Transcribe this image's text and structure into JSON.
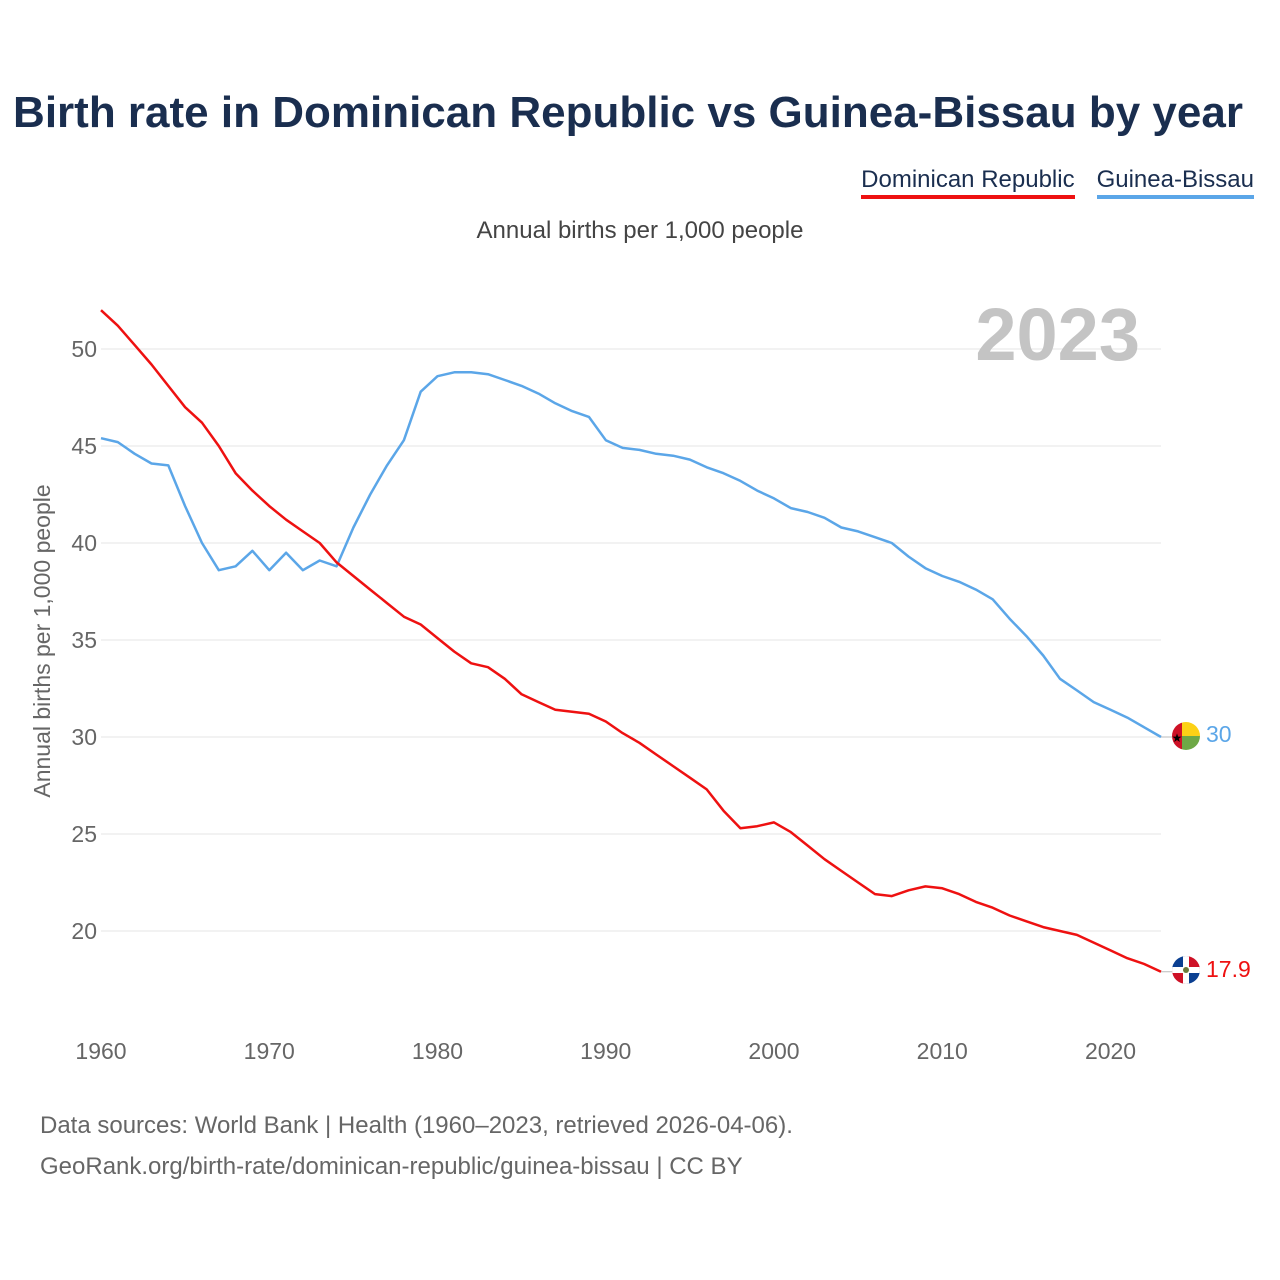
{
  "title": "Birth rate in Dominican Republic vs Guinea-Bissau by year",
  "subtitle": "Annual births per 1,000 people",
  "footer": {
    "line1": "Data sources: World Bank | Health (1960–2023, retrieved 2026-04-06).",
    "line2": "GeoRank.org/birth-rate/dominican-republic/guinea-bissau | CC BY"
  },
  "colors": {
    "dominican": "#ee1111",
    "guinea": "#5ba6e8",
    "grid": "#e6e6e6",
    "year": "#c4c4c4"
  },
  "chart_data": {
    "type": "line",
    "title": "Birth rate in Dominican Republic vs Guinea-Bissau by year",
    "ylabel": "Annual births per 1,000 people",
    "xlabel": "",
    "year_label": "2023",
    "xlim": [
      1960,
      2023
    ],
    "ylim": [
      16,
      53
    ],
    "x_ticks": [
      "1960",
      "1970",
      "1980",
      "1990",
      "2000",
      "2010",
      "2020"
    ],
    "y_ticks": [
      "20",
      "25",
      "30",
      "35",
      "40",
      "45",
      "50"
    ],
    "x": [
      1960,
      1961,
      1962,
      1963,
      1964,
      1965,
      1966,
      1967,
      1968,
      1969,
      1970,
      1971,
      1972,
      1973,
      1974,
      1975,
      1976,
      1977,
      1978,
      1979,
      1980,
      1981,
      1982,
      1983,
      1984,
      1985,
      1986,
      1987,
      1988,
      1989,
      1990,
      1991,
      1992,
      1993,
      1994,
      1995,
      1996,
      1997,
      1998,
      1999,
      2000,
      2001,
      2002,
      2003,
      2004,
      2005,
      2006,
      2007,
      2008,
      2009,
      2010,
      2011,
      2012,
      2013,
      2014,
      2015,
      2016,
      2017,
      2018,
      2019,
      2020,
      2021,
      2022,
      2023
    ],
    "series": [
      {
        "name": "Dominican Republic",
        "end_label": "17.9",
        "values": [
          52.0,
          51.2,
          50.2,
          49.2,
          48.1,
          47.0,
          46.2,
          45.0,
          43.6,
          42.7,
          41.9,
          41.2,
          40.6,
          40.0,
          39.0,
          38.3,
          37.6,
          36.9,
          36.2,
          35.8,
          35.1,
          34.4,
          33.8,
          33.6,
          33.0,
          32.2,
          31.8,
          31.4,
          31.3,
          31.2,
          30.8,
          30.2,
          29.7,
          29.1,
          28.5,
          27.9,
          27.3,
          26.2,
          25.3,
          25.4,
          25.6,
          25.1,
          24.4,
          23.7,
          23.1,
          22.5,
          21.9,
          21.8,
          22.1,
          22.3,
          22.2,
          21.9,
          21.5,
          21.2,
          20.8,
          20.5,
          20.2,
          20.0,
          19.8,
          19.4,
          19.0,
          18.6,
          18.3,
          17.9
        ]
      },
      {
        "name": "Guinea-Bissau",
        "end_label": "30",
        "values": [
          45.4,
          45.2,
          44.6,
          44.1,
          44.0,
          41.9,
          40.0,
          38.6,
          38.8,
          39.6,
          38.6,
          39.5,
          38.6,
          39.1,
          38.8,
          40.8,
          42.5,
          44.0,
          45.3,
          47.8,
          48.6,
          48.8,
          48.8,
          48.7,
          48.4,
          48.1,
          47.7,
          47.2,
          46.8,
          46.5,
          45.3,
          44.9,
          44.8,
          44.6,
          44.5,
          44.3,
          43.9,
          43.6,
          43.2,
          42.7,
          42.3,
          41.8,
          41.6,
          41.3,
          40.8,
          40.6,
          40.3,
          40.0,
          39.3,
          38.7,
          38.3,
          38.0,
          37.6,
          37.1,
          36.1,
          35.2,
          34.2,
          33.0,
          32.4,
          31.8,
          31.4,
          31.0,
          30.5,
          30.0
        ]
      }
    ]
  }
}
